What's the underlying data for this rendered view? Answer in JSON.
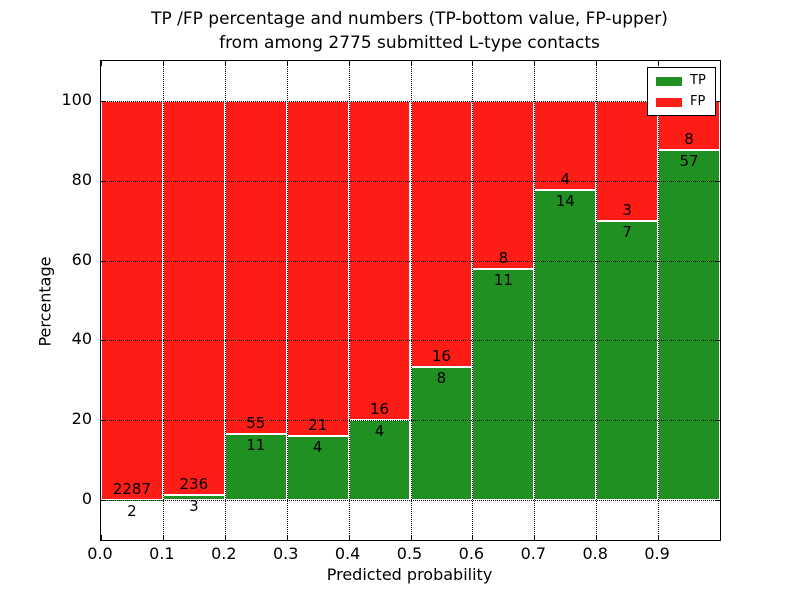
{
  "title": {
    "line1": "TP /FP percentage and numbers (TP-bottom value, FP-upper)",
    "line2": "from among 2775 submitted L-type contacts"
  },
  "axes": {
    "xlabel": "Predicted probability",
    "ylabel": "Percentage"
  },
  "legend": {
    "position": "upper right",
    "items": [
      {
        "label": "TP",
        "color": "#1f9021"
      },
      {
        "label": "FP",
        "color": "#fe1c17"
      }
    ]
  },
  "chart_data": {
    "type": "bar",
    "stacked": true,
    "title": "TP /FP percentage and numbers (TP-bottom value, FP-upper) from among 2775 submitted L-type contacts",
    "xlabel": "Predicted probability",
    "ylabel": "Percentage",
    "total_submitted_contacts": 2775,
    "xlim": [
      0.0,
      1.0
    ],
    "ylim": [
      -10,
      110
    ],
    "x_tick_values": [
      0.0,
      0.1,
      0.2,
      0.3,
      0.4,
      0.5,
      0.6,
      0.7,
      0.8,
      0.9
    ],
    "x_tick_labels": [
      "0.0",
      "0.1",
      "0.2",
      "0.3",
      "0.4",
      "0.5",
      "0.6",
      "0.7",
      "0.8",
      "0.9"
    ],
    "y_tick_values": [
      0,
      20,
      40,
      60,
      80,
      100
    ],
    "y_tick_labels": [
      "0",
      "20",
      "40",
      "60",
      "80",
      "100"
    ],
    "grid": true,
    "colors": {
      "tp": "#1f9021",
      "fp": "#fe1c17",
      "bar_edge": "#ffffff"
    },
    "series": [
      {
        "name": "TP",
        "color": "#1f9021"
      },
      {
        "name": "FP",
        "color": "#fe1c17"
      }
    ],
    "bins": [
      {
        "range": [
          0.0,
          0.1
        ],
        "tp": 2,
        "fp": 2287,
        "tp_pct": 0.09,
        "fp_pct": 99.91
      },
      {
        "range": [
          0.1,
          0.2
        ],
        "tp": 3,
        "fp": 236,
        "tp_pct": 1.26,
        "fp_pct": 98.74
      },
      {
        "range": [
          0.2,
          0.3
        ],
        "tp": 11,
        "fp": 55,
        "tp_pct": 16.67,
        "fp_pct": 83.33
      },
      {
        "range": [
          0.3,
          0.4
        ],
        "tp": 4,
        "fp": 21,
        "tp_pct": 16.0,
        "fp_pct": 84.0
      },
      {
        "range": [
          0.4,
          0.5
        ],
        "tp": 4,
        "fp": 16,
        "tp_pct": 20.0,
        "fp_pct": 80.0
      },
      {
        "range": [
          0.5,
          0.6
        ],
        "tp": 8,
        "fp": 16,
        "tp_pct": 33.33,
        "fp_pct": 66.67
      },
      {
        "range": [
          0.6,
          0.7
        ],
        "tp": 11,
        "fp": 8,
        "tp_pct": 57.89,
        "fp_pct": 42.11
      },
      {
        "range": [
          0.7,
          0.8
        ],
        "tp": 14,
        "fp": 4,
        "tp_pct": 77.78,
        "fp_pct": 22.22
      },
      {
        "range": [
          0.8,
          0.9
        ],
        "tp": 7,
        "fp": 3,
        "tp_pct": 70.0,
        "fp_pct": 30.0
      },
      {
        "range": [
          0.9,
          1.0
        ],
        "tp": 57,
        "fp": 8,
        "tp_pct": 87.69,
        "fp_pct": 12.31
      }
    ]
  }
}
